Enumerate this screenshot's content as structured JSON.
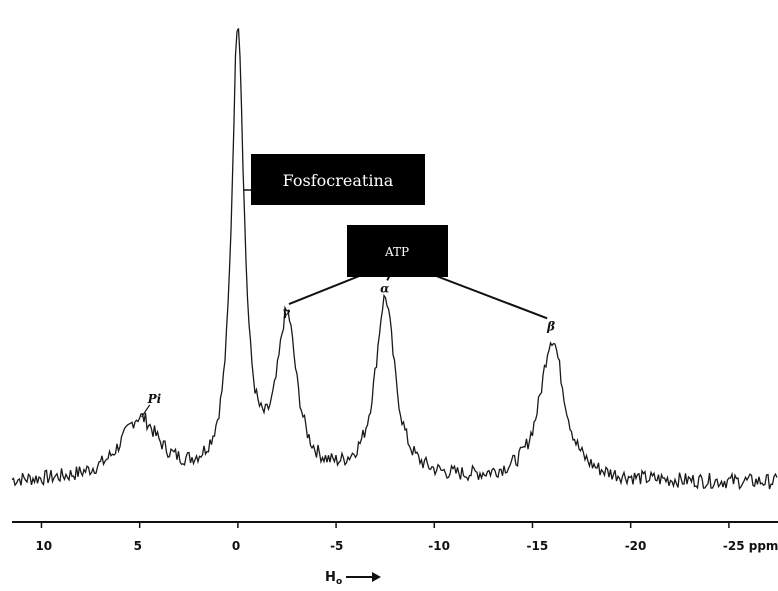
{
  "chart_data": {
    "type": "line",
    "xlabel": "H",
    "xlabel_subscript": "o",
    "x_reversed": true,
    "xlim": [
      11.5,
      -27.5
    ],
    "ylim": [
      0,
      100
    ],
    "x_ticks": [
      10,
      5,
      0,
      -5,
      -10,
      -15,
      -20,
      -25
    ],
    "x_tick_labels": [
      "10",
      "5",
      "0",
      "-5",
      "-10",
      "-15",
      "-20",
      "-25 ppm"
    ],
    "series": [
      {
        "peaks": [
          {
            "label": "Pi",
            "x": 5.0,
            "height": 13,
            "width": 1.2
          },
          {
            "label": "",
            "x": 0.0,
            "height": 95,
            "width": 0.38
          },
          {
            "label": "γ",
            "x": -2.5,
            "height": 33,
            "width": 0.6
          },
          {
            "label": "α",
            "x": -7.5,
            "height": 38,
            "width": 0.6
          },
          {
            "label": "β",
            "x": -16.0,
            "height": 30,
            "width": 0.75
          }
        ],
        "baseline": 2
      }
    ],
    "annotations": [
      {
        "text": "Fosfocreatina",
        "points_to_peak": 1
      },
      {
        "text": "ATP",
        "points_to_peaks": [
          2,
          3,
          4
        ]
      }
    ]
  }
}
